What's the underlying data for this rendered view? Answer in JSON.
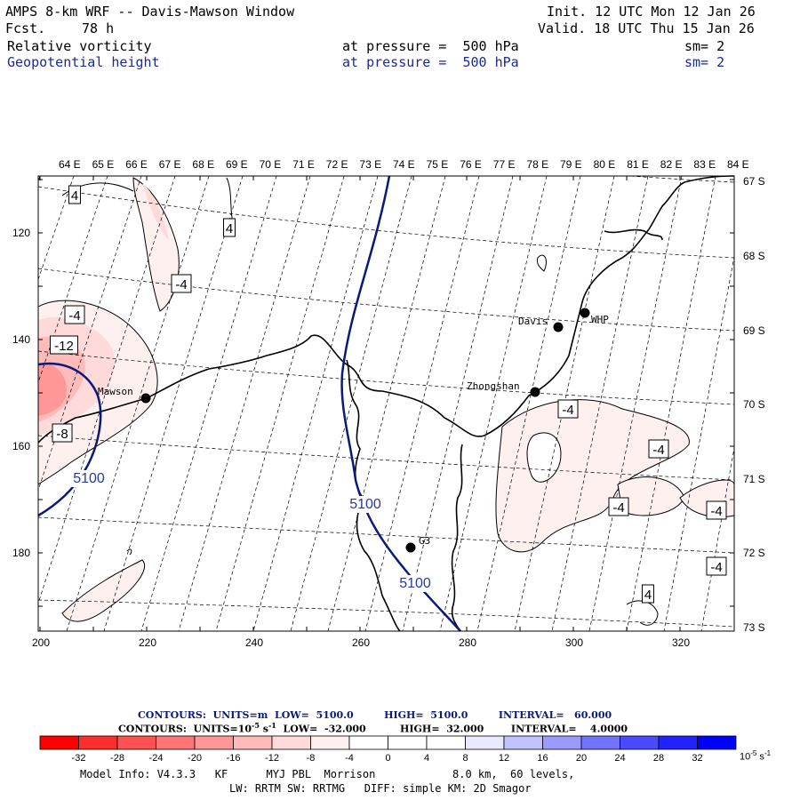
{
  "header": {
    "title": "AMPS 8-km WRF -- Davis-Mawson Window",
    "init": "Init. 12 UTC Mon 12 Jan 26",
    "fcst_label": "Fcst.",
    "fcst_value": "78 h",
    "valid": "Valid. 18 UTC Thu 15 Jan 26",
    "field1_name": "Relative vorticity",
    "field1_level": "at pressure =  500 hPa",
    "field1_sm": "sm= 2",
    "field2_name": "Geopotential height",
    "field2_level": "at pressure =  500 hPa",
    "field2_sm": "sm= 2"
  },
  "map": {
    "top_lon_labels": [
      "64 E",
      "65 E",
      "66 E",
      "67 E",
      "68 E",
      "69 E",
      "70 E",
      "71 E",
      "72 E",
      "73 E",
      "74 E",
      "75 E",
      "76 E",
      "77 E",
      "78 E",
      "79 E",
      "80 E",
      "81 E",
      "82 E",
      "83 E",
      "84 E"
    ],
    "right_lat_labels": [
      "67 S",
      "68 S",
      "69 S",
      "70 S",
      "71 S",
      "72 S",
      "73 S"
    ],
    "left_y_labels": [
      "120",
      "140",
      "160",
      "180"
    ],
    "bottom_x_labels": [
      "200",
      "220",
      "240",
      "260",
      "280",
      "300",
      "320"
    ],
    "stations": [
      {
        "name": "Mawson"
      },
      {
        "name": "Davis"
      },
      {
        "name": "WHP"
      },
      {
        "name": "Zhongshan"
      },
      {
        "name": "G3"
      }
    ],
    "vorticity_labels": [
      "4",
      "4",
      "-4",
      "-4",
      "-12",
      "-8",
      "-4",
      "-4",
      "-4",
      "-4",
      "-4",
      "4"
    ],
    "height_labels": [
      "5100",
      "5100",
      "5100"
    ]
  },
  "footer": {
    "contours1": "CONTOURS:  UNITS=m  LOW=  5100.0         HIGH=  5100.0         INTERVAL=   60.000",
    "contours2": "CONTOURS:  UNITS=10",
    "contours2_exp": "-5",
    "contours2_rest": " s",
    "contours2_exp2": "-1",
    "contours2_tail": "  LOW=  -32.000          HIGH=  32.000        INTERVAL=    4.0000",
    "colorbar_labels": [
      "-32",
      "-28",
      "-24",
      "-20",
      "-16",
      "-12",
      "-8",
      "-4",
      "0",
      "4",
      "8",
      "12",
      "16",
      "20",
      "24",
      "28",
      "32"
    ],
    "colorbar_units": "10",
    "colorbar_units_exp": "-5",
    "colorbar_units_s": " s",
    "colorbar_units_exp2": "-1",
    "model_info1": "Model Info: V4.3.3   KF      MYJ PBL  Morrison            8.0 km,  60 levels,",
    "model_info2": "LW: RRTM SW: RRTMG   DIFF: simple KM: 2D Smagor"
  },
  "colors": {
    "height_contour": "#0a1a7a",
    "coast": "#000000",
    "colorbar": [
      "#ff0000",
      "#ff2e2e",
      "#ff5151",
      "#ff7474",
      "#ff9797",
      "#ffbaba",
      "#ffdada",
      "#fff0f0",
      "#ffffff",
      "#ffffff",
      "#e8e8ff",
      "#c2c2ff",
      "#9a9aff",
      "#7272ff",
      "#4a4aff",
      "#2222ff",
      "#0000ff"
    ]
  }
}
